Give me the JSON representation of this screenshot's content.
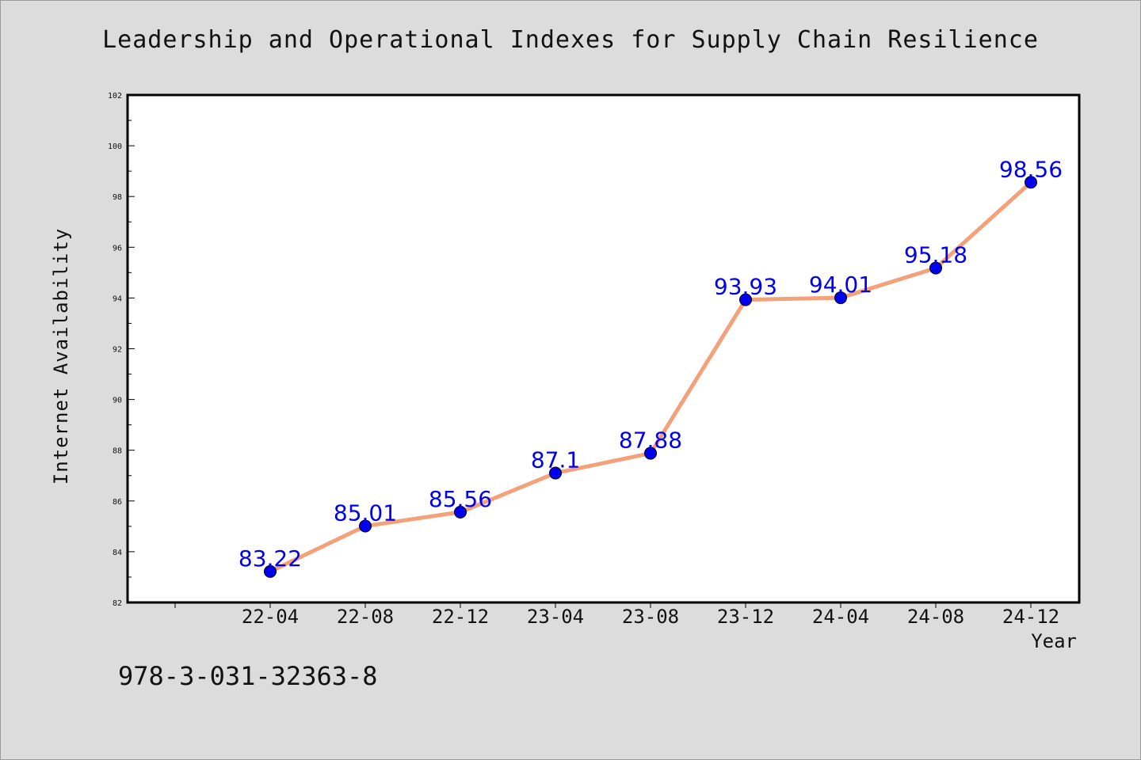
{
  "chart_data": {
    "type": "line",
    "title": "Leadership and Operational Indexes for Supply Chain Resilience",
    "xlabel": "Year",
    "ylabel": "Internet Availability",
    "categories": [
      "22-04",
      "22-08",
      "22-12",
      "23-04",
      "23-08",
      "23-12",
      "24-04",
      "24-08",
      "24-12"
    ],
    "series": [
      {
        "values": [
          83.22,
          85.01,
          85.56,
          87.1,
          87.88,
          93.93,
          94.01,
          95.18,
          98.56
        ],
        "data_labels": [
          "83.22",
          "85.01",
          "85.56",
          "87.1",
          "87.88",
          "93.93",
          "94.01",
          "95.18",
          "98.56"
        ],
        "line_color": "#f4a078",
        "marker_color": "#0000ee",
        "label_color": "#0000ee"
      }
    ],
    "ylim": [
      82,
      102
    ],
    "yticks": [
      "82",
      "84",
      "86",
      "88",
      "90",
      "92",
      "94",
      "96",
      "98",
      "100",
      "102"
    ],
    "grid": false,
    "legend": "none"
  },
  "annotation": "978-3-031-32363-8",
  "colors": {
    "background": "#dcdcdc",
    "plot_area": "#ffffff",
    "axes": "#000000"
  }
}
